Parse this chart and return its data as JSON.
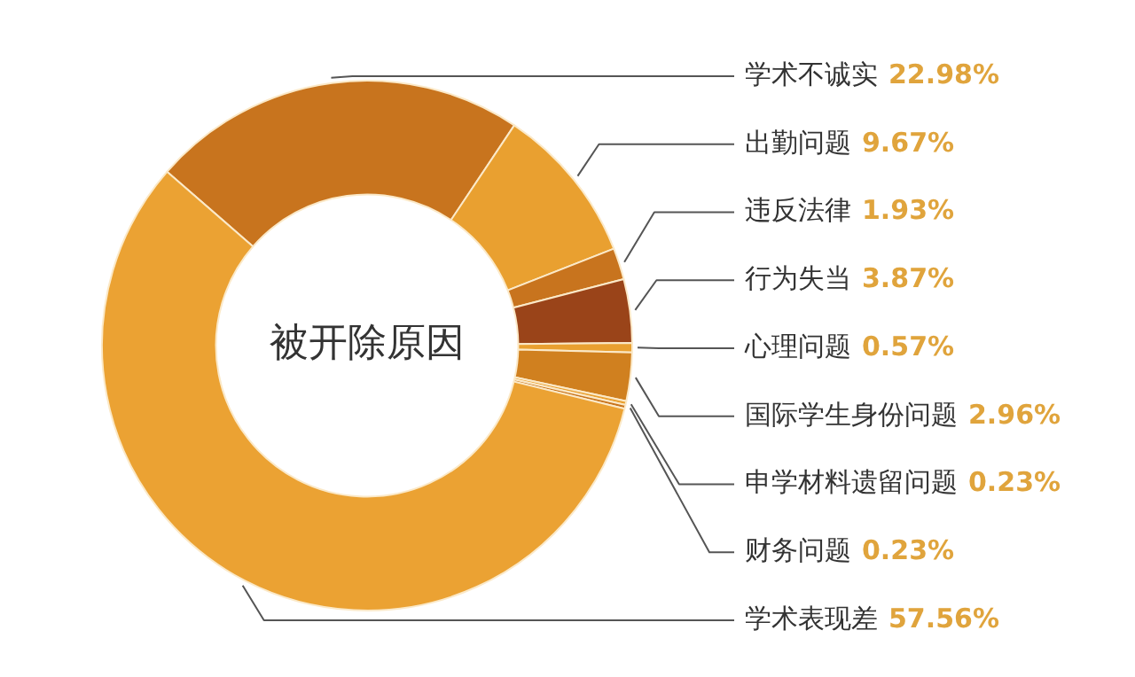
{
  "chart_data": {
    "type": "donut",
    "title": "被开除原因",
    "categories": [
      "学术不诚实",
      "出勤问题",
      "违反法律",
      "行为失当",
      "心理问题",
      "国际学生身份问题",
      "申学材料遗留问题",
      "财务问题",
      "学术表现差"
    ],
    "values": [
      22.98,
      9.67,
      1.93,
      3.87,
      0.57,
      2.96,
      0.23,
      0.23,
      57.56
    ],
    "value_labels": [
      "22.98%",
      "9.67%",
      "1.93%",
      "3.87%",
      "0.57%",
      "2.96%",
      "0.23%",
      "0.23%",
      "57.56%"
    ],
    "colors": [
      "#c8741e",
      "#e9a030",
      "#c8741e",
      "#9a4419",
      "#e9a030",
      "#d0801f",
      "#e9a030",
      "#c8741e",
      "#eba233"
    ]
  }
}
